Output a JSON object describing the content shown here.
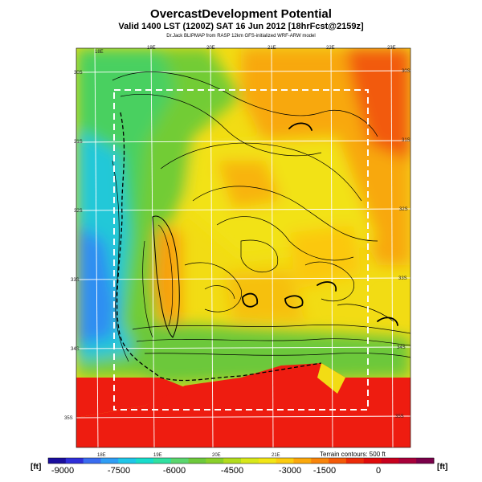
{
  "header": {
    "title": "OvercastDevelopment Potential",
    "subtitle": "Valid 1400 LST (1200Z) SAT 16 Jun 2012 [18hrFcst@2159z]",
    "credit": "Dr.Jack BLIPMAP from RASP 12km GFS-initialized WRF-ARW model"
  },
  "map": {
    "lon_labels_top": [
      "18E",
      "19E",
      "20E",
      "21E",
      "22E",
      "23E"
    ],
    "lon_labels_bottom": [
      "18E",
      "19E",
      "20E",
      "21E"
    ],
    "lat_labels_left": [
      "30S",
      "31S",
      "32S",
      "33S",
      "34S",
      "35S"
    ],
    "lat_labels_right": [
      "30S",
      "31S",
      "32S",
      "33S",
      "34S",
      "35S"
    ],
    "terrain_note": "Terrain contours: 500 ft"
  },
  "colorbar": {
    "unit_left": "[ft]",
    "unit_right": "[ft]",
    "ticks": [
      "-9000",
      "-7500",
      "-6000",
      "-4500",
      "-3000",
      "-1500",
      "0"
    ],
    "colors": [
      "#1a0e9e",
      "#2f2fd9",
      "#3a6cf0",
      "#2f9ef5",
      "#1fc6e8",
      "#18dccb",
      "#30e0a0",
      "#5ad66e",
      "#6ec93c",
      "#8ad02a",
      "#b2dc1e",
      "#d8e81a",
      "#f2e616",
      "#fccc10",
      "#fba80c",
      "#f8840a",
      "#f45a08",
      "#ec2a08",
      "#e00a0a",
      "#c8001e",
      "#a8003a",
      "#7a004a"
    ]
  }
}
